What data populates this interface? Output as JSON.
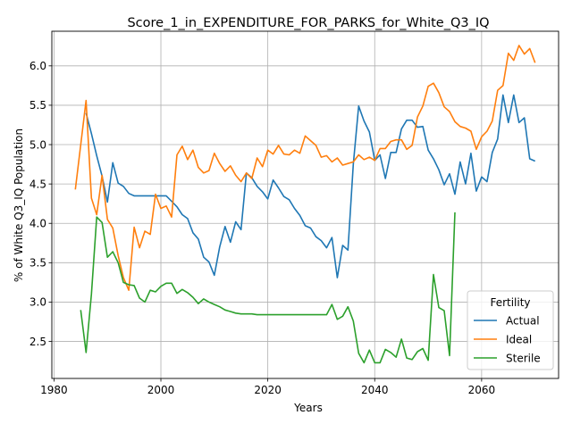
{
  "chart_data": {
    "type": "line",
    "title": "Score_1_in_EXPENDITURE_FOR_PARKS_for_White_Q3_IQ",
    "xlabel": "Years",
    "ylabel": "% of White Q3_IQ Population",
    "xlim": [
      1979.6,
      2074.4
    ],
    "ylim": [
      2.03,
      6.44
    ],
    "xticks": [
      1980,
      2000,
      2020,
      2040,
      2060
    ],
    "yticks": [
      2.5,
      3.0,
      3.5,
      4.0,
      4.5,
      5.0,
      5.5,
      6.0
    ],
    "grid": true,
    "legend": {
      "title": "Fertility",
      "position": "lower-right"
    },
    "series": [
      {
        "name": "Actual",
        "color": "#1f77b4",
        "x": [
          1986,
          1987,
          1988,
          1989,
          1990,
          1991,
          1992,
          1993,
          1994,
          1995,
          1996,
          1997,
          1998,
          1999,
          2000,
          2001,
          2002,
          2003,
          2004,
          2005,
          2006,
          2007,
          2008,
          2009,
          2010,
          2011,
          2012,
          2013,
          2014,
          2015,
          2016,
          2017,
          2018,
          2019,
          2020,
          2021,
          2022,
          2023,
          2024,
          2025,
          2026,
          2027,
          2028,
          2029,
          2030,
          2031,
          2032,
          2033,
          2034,
          2035,
          2036,
          2037,
          2038,
          2039,
          2040,
          2041,
          2042,
          2043,
          2044,
          2045,
          2046,
          2047,
          2048,
          2049,
          2050,
          2051,
          2052,
          2053,
          2054,
          2055,
          2056,
          2057,
          2058,
          2059,
          2060,
          2061,
          2062,
          2063,
          2064,
          2065,
          2066,
          2067,
          2068,
          2069,
          2070
        ],
        "y": [
          5.4,
          5.14,
          4.86,
          4.6,
          4.27,
          4.77,
          4.51,
          4.47,
          4.38,
          4.35,
          4.35,
          4.35,
          4.35,
          4.35,
          4.35,
          4.35,
          4.28,
          4.21,
          4.11,
          4.06,
          3.88,
          3.8,
          3.57,
          3.51,
          3.34,
          3.7,
          3.96,
          3.76,
          4.02,
          3.92,
          4.64,
          4.58,
          4.47,
          4.4,
          4.31,
          4.55,
          4.45,
          4.34,
          4.3,
          4.19,
          4.1,
          3.97,
          3.94,
          3.83,
          3.78,
          3.69,
          3.82,
          3.31,
          3.72,
          3.66,
          4.75,
          5.49,
          5.3,
          5.16,
          4.8,
          4.87,
          4.57,
          4.9,
          4.9,
          5.2,
          5.31,
          5.31,
          5.22,
          5.23,
          4.93,
          4.82,
          4.68,
          4.49,
          4.63,
          4.37,
          4.78,
          4.5,
          4.89,
          4.41,
          4.59,
          4.53,
          4.9,
          5.07,
          5.63,
          5.28,
          5.63,
          5.28,
          5.34,
          4.82,
          4.79
        ]
      },
      {
        "name": "Ideal",
        "color": "#ff7f0e",
        "x": [
          1984,
          1986,
          1987,
          1988,
          1989,
          1990,
          1991,
          1992,
          1993,
          1994,
          1995,
          1996,
          1997,
          1998,
          1999,
          2000,
          2001,
          2002,
          2003,
          2004,
          2005,
          2006,
          2007,
          2008,
          2009,
          2010,
          2011,
          2012,
          2013,
          2014,
          2015,
          2016,
          2017,
          2018,
          2019,
          2020,
          2021,
          2022,
          2023,
          2024,
          2025,
          2026,
          2027,
          2028,
          2029,
          2030,
          2031,
          2032,
          2033,
          2034,
          2035,
          2036,
          2037,
          2038,
          2039,
          2040,
          2041,
          2042,
          2043,
          2044,
          2045,
          2046,
          2047,
          2048,
          2049,
          2050,
          2051,
          2052,
          2053,
          2054,
          2055,
          2056,
          2057,
          2058,
          2059,
          2060,
          2061,
          2062,
          2063,
          2064,
          2065,
          2066,
          2067,
          2068,
          2069,
          2070
        ],
        "y": [
          4.43,
          5.56,
          4.32,
          4.11,
          4.61,
          4.05,
          3.94,
          3.59,
          3.31,
          3.15,
          3.95,
          3.69,
          3.9,
          3.86,
          4.37,
          4.19,
          4.22,
          4.08,
          4.87,
          4.98,
          4.81,
          4.93,
          4.71,
          4.64,
          4.67,
          4.89,
          4.76,
          4.66,
          4.73,
          4.61,
          4.53,
          4.64,
          4.57,
          4.83,
          4.72,
          4.93,
          4.88,
          4.99,
          4.88,
          4.87,
          4.93,
          4.89,
          5.11,
          5.05,
          4.99,
          4.84,
          4.86,
          4.78,
          4.83,
          4.74,
          4.76,
          4.78,
          4.87,
          4.81,
          4.84,
          4.8,
          4.95,
          4.95,
          5.04,
          5.06,
          5.06,
          4.94,
          4.99,
          5.35,
          5.49,
          5.74,
          5.78,
          5.66,
          5.48,
          5.42,
          5.29,
          5.23,
          5.21,
          5.17,
          4.94,
          5.1,
          5.17,
          5.3,
          5.69,
          5.75,
          6.16,
          6.07,
          6.26,
          6.15,
          6.22,
          6.04
        ]
      },
      {
        "name": "Sterile",
        "color": "#2ca02c",
        "x": [
          1985,
          1986,
          1987,
          1988,
          1989,
          1990,
          1991,
          1992,
          1993,
          1994,
          1995,
          1996,
          1997,
          1998,
          1999,
          2000,
          2001,
          2002,
          2003,
          2004,
          2005,
          2006,
          2007,
          2008,
          2009,
          2010,
          2011,
          2012,
          2013,
          2014,
          2015,
          2016,
          2017,
          2018,
          2019,
          2020,
          2021,
          2022,
          2023,
          2024,
          2025,
          2026,
          2027,
          2028,
          2029,
          2030,
          2031,
          2032,
          2033,
          2034,
          2035,
          2036,
          2037,
          2038,
          2039,
          2040,
          2041,
          2042,
          2043,
          2044,
          2045,
          2046,
          2047,
          2048,
          2049,
          2050,
          2051,
          2052,
          2053,
          2054,
          2055
        ],
        "y": [
          2.9,
          2.36,
          3.1,
          4.08,
          4.01,
          3.57,
          3.64,
          3.5,
          3.25,
          3.22,
          3.21,
          3.05,
          3.0,
          3.15,
          3.13,
          3.2,
          3.24,
          3.24,
          3.11,
          3.16,
          3.12,
          3.06,
          2.98,
          3.04,
          3.0,
          2.97,
          2.94,
          2.9,
          2.88,
          2.86,
          2.85,
          2.85,
          2.85,
          2.84,
          2.84,
          2.84,
          2.84,
          2.84,
          2.84,
          2.84,
          2.84,
          2.84,
          2.84,
          2.84,
          2.84,
          2.84,
          2.84,
          2.97,
          2.78,
          2.82,
          2.94,
          2.76,
          2.35,
          2.23,
          2.39,
          2.23,
          2.23,
          2.4,
          2.36,
          2.3,
          2.53,
          2.29,
          2.27,
          2.37,
          2.41,
          2.26,
          3.35,
          2.93,
          2.89,
          2.32,
          4.14
        ]
      }
    ]
  }
}
